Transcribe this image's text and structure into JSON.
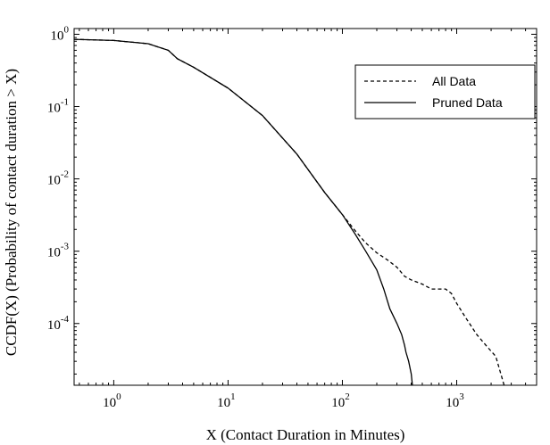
{
  "chart_data": {
    "type": "line",
    "xlabel": "X (Contact Duration in Minutes)",
    "ylabel": "CCDF(X) (Probability of contact duration > X)",
    "x_scale": "log",
    "y_scale": "log",
    "xlim": [
      0.45,
      5000
    ],
    "ylim": [
      1.4e-05,
      1.2
    ],
    "x_ticks": [
      {
        "value": 1,
        "base": "10",
        "exp": "0"
      },
      {
        "value": 10,
        "base": "10",
        "exp": "1"
      },
      {
        "value": 100,
        "base": "10",
        "exp": "2"
      },
      {
        "value": 1000,
        "base": "10",
        "exp": "3"
      }
    ],
    "y_ticks": [
      {
        "value": 1,
        "base": "10",
        "exp": "0"
      },
      {
        "value": 0.1,
        "base": "10",
        "exp": "-1"
      },
      {
        "value": 0.01,
        "base": "10",
        "exp": "-2"
      },
      {
        "value": 0.001,
        "base": "10",
        "exp": "-3"
      },
      {
        "value": 0.0001,
        "base": "10",
        "exp": "-4"
      }
    ],
    "legend_position": "top-right",
    "series": [
      {
        "name": "All Data",
        "style": "dashed",
        "color": "#000000",
        "x": [
          0.45,
          1,
          2,
          3,
          3.4,
          3.6,
          5,
          10,
          20,
          40,
          70,
          100,
          130,
          160,
          200,
          250,
          300,
          350,
          400,
          500,
          600,
          800,
          900,
          1000,
          1200,
          1500,
          1800,
          2200,
          2600
        ],
        "y": [
          0.85,
          0.82,
          0.74,
          0.6,
          0.5,
          0.46,
          0.35,
          0.18,
          0.075,
          0.022,
          0.0065,
          0.0032,
          0.0019,
          0.0013,
          0.00095,
          0.00075,
          0.0006,
          0.00045,
          0.0004,
          0.00035,
          0.0003,
          0.0003,
          0.00026,
          0.00019,
          0.00012,
          7e-05,
          5e-05,
          3.5e-05,
          1.4e-05
        ]
      },
      {
        "name": "Pruned Data",
        "style": "solid",
        "color": "#000000",
        "x": [
          0.45,
          1,
          2,
          3,
          3.4,
          3.6,
          5,
          10,
          20,
          40,
          70,
          100,
          130,
          160,
          200,
          230,
          260,
          300,
          330,
          350,
          360,
          380,
          400,
          410
        ],
        "y": [
          0.85,
          0.82,
          0.74,
          0.6,
          0.5,
          0.46,
          0.35,
          0.18,
          0.075,
          0.022,
          0.0065,
          0.0032,
          0.0017,
          0.001,
          0.00055,
          0.0003,
          0.00016,
          0.0001,
          7e-05,
          5e-05,
          4e-05,
          3e-05,
          2e-05,
          1.4e-05
        ]
      }
    ]
  }
}
